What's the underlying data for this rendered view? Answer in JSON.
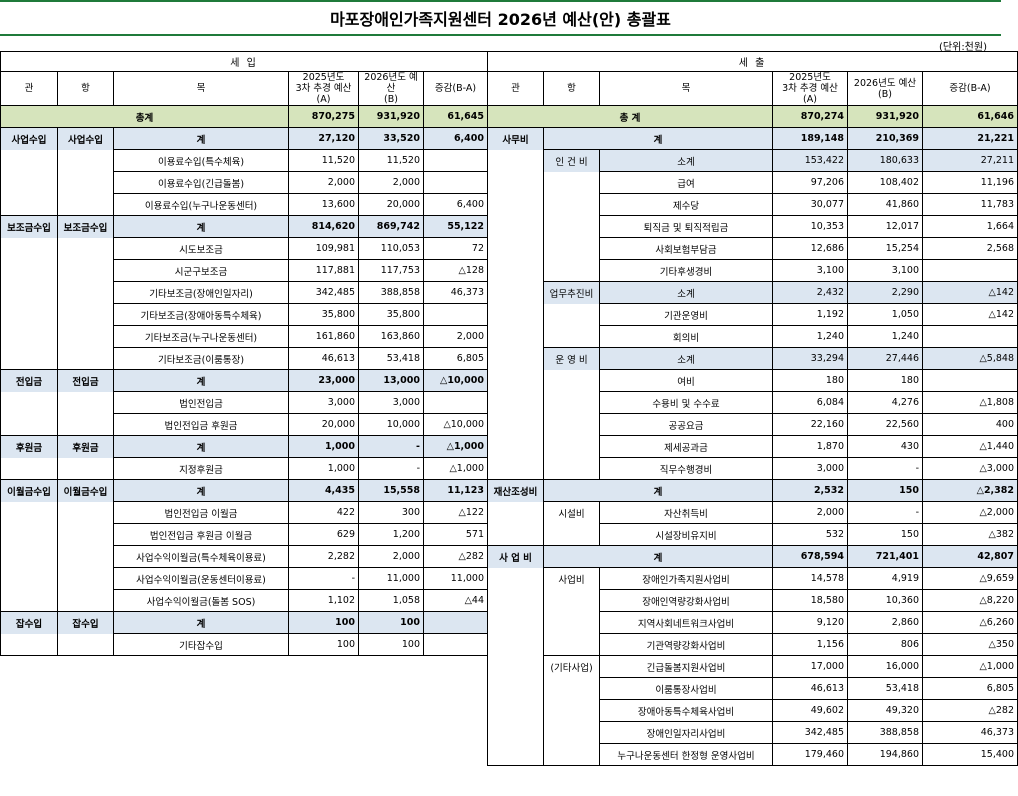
{
  "title": "마포장애인가족지원센터 2026년 예산(안) 총괄표",
  "unit": "(단위:천원)",
  "income": {
    "caption": "세                    입",
    "headers": {
      "gwan": "관",
      "hang": "항",
      "mok": "목",
      "prev": "2025년도\n3차 추경 예산(A)",
      "curr": "2026년도 예산\n(B)",
      "diff": "증감(B-A)"
    },
    "total": {
      "label": "총계",
      "prev": "870,275",
      "curr": "931,920",
      "diff": "61,645"
    },
    "rows": [
      {
        "gwan": "사업수입",
        "hang": "사업수입",
        "mok": "계",
        "prev": "27,120",
        "curr": "33,520",
        "diff": "6,400",
        "kind": "sum"
      },
      {
        "gwan": "",
        "hang": "",
        "mok": "이용료수입(특수체육)",
        "prev": "11,520",
        "curr": "11,520",
        "diff": "",
        "kind": "item"
      },
      {
        "gwan": "",
        "hang": "",
        "mok": "이용료수입(긴급돌봄)",
        "prev": "2,000",
        "curr": "2,000",
        "diff": "",
        "kind": "item"
      },
      {
        "gwan": "",
        "hang": "",
        "mok": "이용료수입(누구나운동센터)",
        "prev": "13,600",
        "curr": "20,000",
        "diff": "6,400",
        "kind": "item"
      },
      {
        "gwan": "보조금수입",
        "hang": "보조금수입",
        "mok": "계",
        "prev": "814,620",
        "curr": "869,742",
        "diff": "55,122",
        "kind": "sum"
      },
      {
        "gwan": "",
        "hang": "",
        "mok": "시도보조금",
        "prev": "109,981",
        "curr": "110,053",
        "diff": "72",
        "kind": "item"
      },
      {
        "gwan": "",
        "hang": "",
        "mok": "시군구보조금",
        "prev": "117,881",
        "curr": "117,753",
        "diff": "△128",
        "kind": "item"
      },
      {
        "gwan": "",
        "hang": "",
        "mok": "기타보조금(장애인일자리)",
        "prev": "342,485",
        "curr": "388,858",
        "diff": "46,373",
        "kind": "item"
      },
      {
        "gwan": "",
        "hang": "",
        "mok": "기타보조금(장애아동특수체육)",
        "prev": "35,800",
        "curr": "35,800",
        "diff": "",
        "kind": "item"
      },
      {
        "gwan": "",
        "hang": "",
        "mok": "기타보조금(누구나운동센터)",
        "prev": "161,860",
        "curr": "163,860",
        "diff": "2,000",
        "kind": "item"
      },
      {
        "gwan": "",
        "hang": "",
        "mok": "기타보조금(이룸통장)",
        "prev": "46,613",
        "curr": "53,418",
        "diff": "6,805",
        "kind": "item"
      },
      {
        "gwan": "전입금",
        "hang": "전입금",
        "mok": "계",
        "prev": "23,000",
        "curr": "13,000",
        "diff": "△10,000",
        "kind": "sum"
      },
      {
        "gwan": "",
        "hang": "",
        "mok": "법인전입금",
        "prev": "3,000",
        "curr": "3,000",
        "diff": "",
        "kind": "item"
      },
      {
        "gwan": "",
        "hang": "",
        "mok": "법인전입금 후원금",
        "prev": "20,000",
        "curr": "10,000",
        "diff": "△10,000",
        "kind": "item"
      },
      {
        "gwan": "후원금",
        "hang": "후원금",
        "mok": "계",
        "prev": "1,000",
        "curr": "-",
        "diff": "△1,000",
        "kind": "sum"
      },
      {
        "gwan": "",
        "hang": "",
        "mok": "지정후원금",
        "prev": "1,000",
        "curr": "-",
        "diff": "△1,000",
        "kind": "item"
      },
      {
        "gwan": "이월금수입",
        "hang": "이월금수입",
        "mok": "계",
        "prev": "4,435",
        "curr": "15,558",
        "diff": "11,123",
        "kind": "sum"
      },
      {
        "gwan": "",
        "hang": "",
        "mok": "법인전입금 이월금",
        "prev": "422",
        "curr": "300",
        "diff": "△122",
        "kind": "item"
      },
      {
        "gwan": "",
        "hang": "",
        "mok": "법인전입금 후원금 이월금",
        "prev": "629",
        "curr": "1,200",
        "diff": "571",
        "kind": "item"
      },
      {
        "gwan": "",
        "hang": "",
        "mok": "사업수익이월금(특수체육이용료)",
        "prev": "2,282",
        "curr": "2,000",
        "diff": "△282",
        "kind": "item"
      },
      {
        "gwan": "",
        "hang": "",
        "mok": "사업수익이월금(운동센터이용료)",
        "prev": "-",
        "curr": "11,000",
        "diff": "11,000",
        "kind": "item"
      },
      {
        "gwan": "",
        "hang": "",
        "mok": "사업수익이월금(돌봄 SOS)",
        "prev": "1,102",
        "curr": "1,058",
        "diff": "△44",
        "kind": "item"
      },
      {
        "gwan": "잡수입",
        "hang": "잡수입",
        "mok": "계",
        "prev": "100",
        "curr": "100",
        "diff": "",
        "kind": "sum"
      },
      {
        "gwan": "",
        "hang": "",
        "mok": "기타잡수입",
        "prev": "100",
        "curr": "100",
        "diff": "",
        "kind": "item"
      }
    ]
  },
  "expense": {
    "caption": "세                    출",
    "headers": {
      "gwan": "관",
      "hang": "항",
      "mok": "목",
      "prev": "2025년도\n3차 추경 예산(A)",
      "curr": "2026년도 예산(B)",
      "diff": "증감(B-A)"
    },
    "total": {
      "label": "총    계",
      "prev": "870,274",
      "curr": "931,920",
      "diff": "61,646"
    },
    "rows": [
      {
        "gwan": "사무비",
        "hang": "",
        "mok": "계",
        "prev": "189,148",
        "curr": "210,369",
        "diff": "21,221",
        "kind": "gsum"
      },
      {
        "gwan": "",
        "hang": "인 건 비",
        "mok": "소계",
        "prev": "153,422",
        "curr": "180,633",
        "diff": "27,211",
        "kind": "hsum"
      },
      {
        "gwan": "",
        "hang": "",
        "mok": "급여",
        "prev": "97,206",
        "curr": "108,402",
        "diff": "11,196",
        "kind": "item"
      },
      {
        "gwan": "",
        "hang": "",
        "mok": "제수당",
        "prev": "30,077",
        "curr": "41,860",
        "diff": "11,783",
        "kind": "item"
      },
      {
        "gwan": "",
        "hang": "",
        "mok": "퇴직금 및 퇴직적립금",
        "prev": "10,353",
        "curr": "12,017",
        "diff": "1,664",
        "kind": "item"
      },
      {
        "gwan": "",
        "hang": "",
        "mok": "사회보험부담금",
        "prev": "12,686",
        "curr": "15,254",
        "diff": "2,568",
        "kind": "item"
      },
      {
        "gwan": "",
        "hang": "",
        "mok": "기타후생경비",
        "prev": "3,100",
        "curr": "3,100",
        "diff": "",
        "kind": "item"
      },
      {
        "gwan": "",
        "hang": "업무추진비",
        "mok": "소계",
        "prev": "2,432",
        "curr": "2,290",
        "diff": "△142",
        "kind": "hsum"
      },
      {
        "gwan": "",
        "hang": "",
        "mok": "기관운영비",
        "prev": "1,192",
        "curr": "1,050",
        "diff": "△142",
        "kind": "item"
      },
      {
        "gwan": "",
        "hang": "",
        "mok": "회의비",
        "prev": "1,240",
        "curr": "1,240",
        "diff": "",
        "kind": "item"
      },
      {
        "gwan": "",
        "hang": "운 영 비",
        "mok": "소계",
        "prev": "33,294",
        "curr": "27,446",
        "diff": "△5,848",
        "kind": "hsum"
      },
      {
        "gwan": "",
        "hang": "",
        "mok": "여비",
        "prev": "180",
        "curr": "180",
        "diff": "",
        "kind": "item"
      },
      {
        "gwan": "",
        "hang": "",
        "mok": "수용비 및 수수료",
        "prev": "6,084",
        "curr": "4,276",
        "diff": "△1,808",
        "kind": "item"
      },
      {
        "gwan": "",
        "hang": "",
        "mok": "공공요금",
        "prev": "22,160",
        "curr": "22,560",
        "diff": "400",
        "kind": "item"
      },
      {
        "gwan": "",
        "hang": "",
        "mok": "제세공과금",
        "prev": "1,870",
        "curr": "430",
        "diff": "△1,440",
        "kind": "item"
      },
      {
        "gwan": "",
        "hang": "",
        "mok": "직무수행경비",
        "prev": "3,000",
        "curr": "-",
        "diff": "△3,000",
        "kind": "item"
      },
      {
        "gwan": "재산조성비",
        "hang": "계",
        "mok": "",
        "prev": "2,532",
        "curr": "150",
        "diff": "△2,382",
        "kind": "gsum2"
      },
      {
        "gwan": "",
        "hang": "시설비",
        "mok": "자산취득비",
        "prev": "2,000",
        "curr": "-",
        "diff": "△2,000",
        "kind": "item"
      },
      {
        "gwan": "",
        "hang": "",
        "mok": "시설장비유지비",
        "prev": "532",
        "curr": "150",
        "diff": "△382",
        "kind": "item"
      },
      {
        "gwan": "사 업 비",
        "hang": "계",
        "mok": "",
        "prev": "678,594",
        "curr": "721,401",
        "diff": "42,807",
        "kind": "gsum2"
      },
      {
        "gwan": "",
        "hang": "사업비",
        "mok": "장애인가족지원사업비",
        "prev": "14,578",
        "curr": "4,919",
        "diff": "△9,659",
        "kind": "item"
      },
      {
        "gwan": "",
        "hang": "",
        "mok": "장애인역량강화사업비",
        "prev": "18,580",
        "curr": "10,360",
        "diff": "△8,220",
        "kind": "item"
      },
      {
        "gwan": "",
        "hang": "",
        "mok": "지역사회네트워크사업비",
        "prev": "9,120",
        "curr": "2,860",
        "diff": "△6,260",
        "kind": "item"
      },
      {
        "gwan": "",
        "hang": "",
        "mok": "기관역량강화사업비",
        "prev": "1,156",
        "curr": "806",
        "diff": "△350",
        "kind": "item"
      },
      {
        "gwan": "",
        "hang": "(기타사업)",
        "mok": "긴급돌봄지원사업비",
        "prev": "17,000",
        "curr": "16,000",
        "diff": "△1,000",
        "kind": "item"
      },
      {
        "gwan": "",
        "hang": "",
        "mok": "이룸통장사업비",
        "prev": "46,613",
        "curr": "53,418",
        "diff": "6,805",
        "kind": "item"
      },
      {
        "gwan": "",
        "hang": "",
        "mok": "장애아동특수체육사업비",
        "prev": "49,602",
        "curr": "49,320",
        "diff": "△282",
        "kind": "item"
      },
      {
        "gwan": "",
        "hang": "",
        "mok": "장애인일자리사업비",
        "prev": "342,485",
        "curr": "388,858",
        "diff": "46,373",
        "kind": "item"
      },
      {
        "gwan": "",
        "hang": "",
        "mok": "누구나운동센터 한정형 운영사업비",
        "prev": "179,460",
        "curr": "194,860",
        "diff": "15,400",
        "kind": "item"
      }
    ]
  },
  "colors": {
    "total_fill": "#d6e4bc",
    "sum_fill": "#dce6f1",
    "border_green": "#1f7a3a"
  }
}
